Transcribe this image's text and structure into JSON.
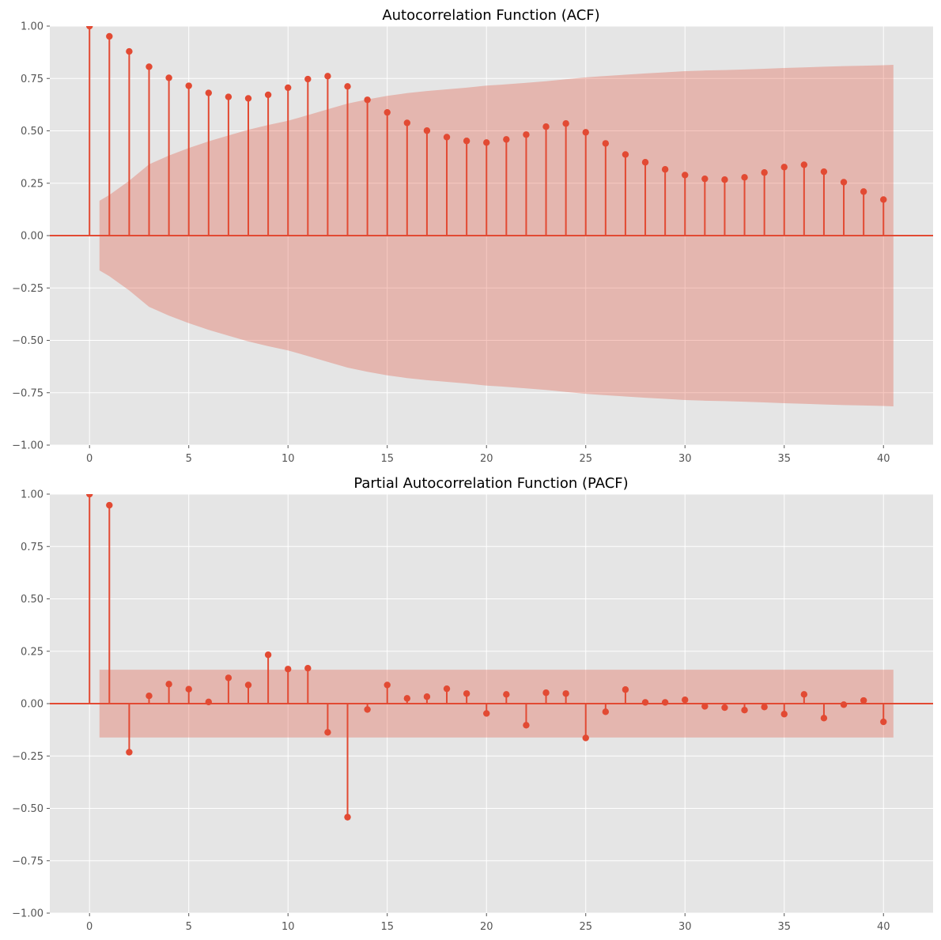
{
  "colors": {
    "stem": "#E24A33",
    "band": "#E24A33",
    "band_alpha": 0.3,
    "axes_bg": "#E5E5E5",
    "grid": "#FFFFFF",
    "tick_text": "#555555"
  },
  "chart_data": [
    {
      "type": "stem",
      "title": "Autocorrelation Function (ACF)",
      "xlabel": "",
      "ylabel": "",
      "xlim": [
        -2.0,
        42.5
      ],
      "ylim": [
        -1.0,
        1.0
      ],
      "grid": true,
      "xticks": [
        0,
        5,
        10,
        15,
        20,
        25,
        30,
        35,
        40
      ],
      "xtick_labels": [
        "0",
        "5",
        "10",
        "15",
        "20",
        "25",
        "30",
        "35",
        "40"
      ],
      "yticks": [
        -1.0,
        -0.75,
        -0.5,
        -0.25,
        0.0,
        0.25,
        0.5,
        0.75,
        1.0
      ],
      "ytick_labels": [
        "−1.00",
        "−0.75",
        "−0.50",
        "−0.25",
        "0.00",
        "0.25",
        "0.50",
        "0.75",
        "1.00"
      ],
      "lags": [
        0,
        1,
        2,
        3,
        4,
        5,
        6,
        7,
        8,
        9,
        10,
        11,
        12,
        13,
        14,
        15,
        16,
        17,
        18,
        19,
        20,
        21,
        22,
        23,
        24,
        25,
        26,
        27,
        28,
        29,
        30,
        31,
        32,
        33,
        34,
        35,
        36,
        37,
        38,
        39,
        40
      ],
      "values": [
        1.0,
        0.951,
        0.879,
        0.806,
        0.753,
        0.715,
        0.681,
        0.662,
        0.655,
        0.672,
        0.706,
        0.747,
        0.761,
        0.712,
        0.648,
        0.588,
        0.538,
        0.501,
        0.47,
        0.452,
        0.444,
        0.459,
        0.482,
        0.52,
        0.535,
        0.493,
        0.44,
        0.387,
        0.35,
        0.316,
        0.289,
        0.271,
        0.267,
        0.278,
        0.301,
        0.327,
        0.338,
        0.305,
        0.255,
        0.21,
        0.172
      ],
      "confidence_band": {
        "x": [
          0.5,
          1,
          2,
          3,
          4,
          5,
          6,
          7,
          8,
          9,
          10,
          11,
          12,
          13,
          14,
          15,
          16,
          17,
          18,
          19,
          20,
          21,
          22,
          23,
          24,
          25,
          26,
          27,
          28,
          29,
          30,
          31,
          32,
          33,
          34,
          35,
          36,
          37,
          38,
          39,
          40,
          40.5
        ],
        "upper": [
          0.166,
          0.194,
          0.262,
          0.34,
          0.382,
          0.418,
          0.45,
          0.478,
          0.505,
          0.528,
          0.548,
          0.575,
          0.603,
          0.63,
          0.65,
          0.667,
          0.68,
          0.69,
          0.698,
          0.706,
          0.716,
          0.722,
          0.729,
          0.737,
          0.746,
          0.755,
          0.762,
          0.768,
          0.774,
          0.779,
          0.785,
          0.788,
          0.79,
          0.793,
          0.796,
          0.8,
          0.803,
          0.806,
          0.809,
          0.811,
          0.813,
          0.815
        ]
      }
    },
    {
      "type": "stem",
      "title": "Partial Autocorrelation Function (PACF)",
      "xlabel": "",
      "ylabel": "",
      "xlim": [
        -2.0,
        42.5
      ],
      "ylim": [
        -1.0,
        1.0
      ],
      "grid": true,
      "xticks": [
        0,
        5,
        10,
        15,
        20,
        25,
        30,
        35,
        40
      ],
      "xtick_labels": [
        "0",
        "5",
        "10",
        "15",
        "20",
        "25",
        "30",
        "35",
        "40"
      ],
      "yticks": [
        -1.0,
        -0.75,
        -0.5,
        -0.25,
        0.0,
        0.25,
        0.5,
        0.75,
        1.0
      ],
      "ytick_labels": [
        "−1.00",
        "−0.75",
        "−0.50",
        "−0.25",
        "0.00",
        "0.25",
        "0.50",
        "0.75",
        "1.00"
      ],
      "lags": [
        0,
        1,
        2,
        3,
        4,
        5,
        6,
        7,
        8,
        9,
        10,
        11,
        12,
        13,
        14,
        15,
        16,
        17,
        18,
        19,
        20,
        21,
        22,
        23,
        24,
        25,
        26,
        27,
        28,
        29,
        30,
        31,
        32,
        33,
        34,
        35,
        36,
        37,
        38,
        39,
        40
      ],
      "values": [
        1.0,
        0.947,
        -0.232,
        0.037,
        0.093,
        0.069,
        0.008,
        0.123,
        0.089,
        0.233,
        0.165,
        0.169,
        -0.137,
        -0.542,
        -0.028,
        0.089,
        0.025,
        0.033,
        0.071,
        0.048,
        -0.047,
        0.044,
        -0.103,
        0.052,
        0.048,
        -0.164,
        -0.039,
        0.067,
        0.006,
        0.006,
        0.018,
        -0.013,
        -0.019,
        -0.031,
        -0.016,
        -0.05,
        0.044,
        -0.069,
        -0.005,
        0.015,
        -0.087
      ],
      "confidence_band": {
        "x": [
          0.5,
          40.5
        ],
        "upper": [
          0.162,
          0.162
        ]
      }
    }
  ]
}
